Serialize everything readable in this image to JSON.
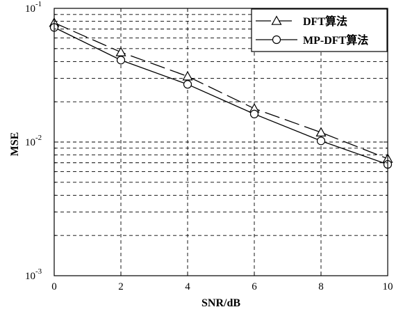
{
  "chart_data": {
    "type": "line",
    "xlabel": "SNR/dB",
    "ylabel": "MSE",
    "xlim": [
      0,
      10
    ],
    "ylim": [
      0.001,
      0.1
    ],
    "yscale": "log",
    "grid": true,
    "legend_position": "top-right",
    "x_ticks": [
      "0",
      "2",
      "4",
      "6",
      "8",
      "10"
    ],
    "y_ticks": [
      {
        "base": "10",
        "exp": "-3"
      },
      {
        "base": "10",
        "exp": "-2"
      },
      {
        "base": "10",
        "exp": "-1"
      }
    ],
    "x": [
      0,
      2,
      4,
      6,
      8,
      10
    ],
    "series": [
      {
        "name": "DFT算法",
        "marker": "triangle",
        "dash": "long-dash",
        "values": [
          0.078,
          0.047,
          0.031,
          0.0178,
          0.0118,
          0.0075
        ]
      },
      {
        "name": "MP-DFT算法",
        "marker": "circle",
        "dash": "solid",
        "values": [
          0.072,
          0.041,
          0.027,
          0.0162,
          0.0102,
          0.0068
        ]
      }
    ]
  }
}
